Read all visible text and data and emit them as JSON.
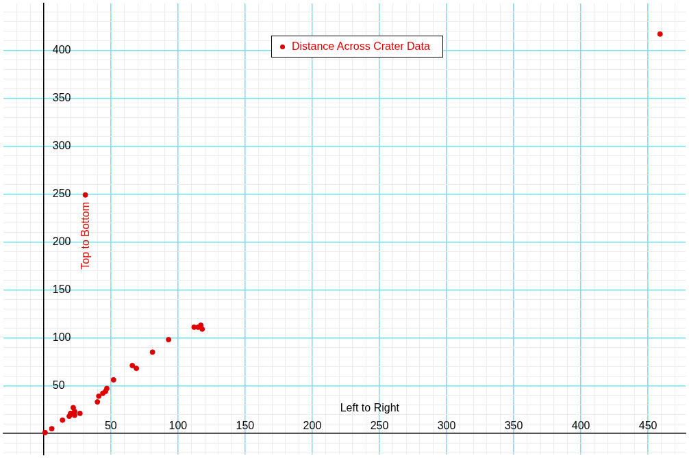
{
  "chart_data": {
    "type": "scatter",
    "xlabel": "Left to Right",
    "ylabel": "Top to Bottom",
    "series": [
      {
        "name": "Distance Across Crater Data",
        "color": "#dd0000",
        "x": [
          1,
          6,
          14,
          19,
          20,
          22,
          23,
          23,
          27,
          40,
          41,
          44,
          46,
          47,
          52,
          66,
          69,
          81,
          93,
          112,
          115,
          117,
          118,
          31,
          459
        ],
        "values": [
          1,
          5,
          14,
          18,
          21,
          27,
          23,
          19,
          21,
          33,
          39,
          42,
          44,
          47,
          56,
          71,
          68,
          85,
          98,
          111,
          111,
          113,
          109,
          249,
          417
        ]
      }
    ],
    "xlim": [
      -30,
      478
    ],
    "ylim": [
      -22,
      449
    ],
    "xticks": [
      {
        "value": -20,
        "label": null
      },
      {
        "value": -10,
        "label": null
      },
      {
        "value": 0,
        "label": null
      },
      {
        "value": 10,
        "label": null
      },
      {
        "value": 20,
        "label": null
      },
      {
        "value": 30,
        "label": null
      },
      {
        "value": 40,
        "label": null
      },
      50,
      {
        "value": 60,
        "label": null
      },
      {
        "value": 70,
        "label": null
      },
      {
        "value": 80,
        "label": null
      },
      {
        "value": 90,
        "label": null
      },
      100,
      {
        "value": 110,
        "label": null
      },
      {
        "value": 120,
        "label": null
      },
      {
        "value": 130,
        "label": null
      },
      {
        "value": 140,
        "label": null
      },
      150,
      {
        "value": 160,
        "label": null
      },
      {
        "value": 170,
        "label": null
      },
      {
        "value": 180,
        "label": null
      },
      {
        "value": 190,
        "label": null
      },
      200,
      {
        "value": 210,
        "label": null
      },
      {
        "value": 220,
        "label": null
      },
      {
        "value": 230,
        "label": null
      },
      {
        "value": 240,
        "label": null
      },
      250,
      {
        "value": 260,
        "label": null
      },
      {
        "value": 270,
        "label": null
      },
      {
        "value": 280,
        "label": null
      },
      {
        "value": 290,
        "label": null
      },
      300,
      {
        "value": 310,
        "label": null
      },
      {
        "value": 320,
        "label": null
      },
      {
        "value": 330,
        "label": null
      },
      {
        "value": 340,
        "label": null
      },
      350,
      {
        "value": 360,
        "label": null
      },
      {
        "value": 370,
        "label": null
      },
      {
        "value": 380,
        "label": null
      },
      {
        "value": 390,
        "label": null
      },
      400,
      {
        "value": 410,
        "label": null
      },
      {
        "value": 420,
        "label": null
      },
      {
        "value": 430,
        "label": null
      },
      {
        "value": 440,
        "label": null
      },
      450,
      {
        "value": 460,
        "label": null
      },
      {
        "value": 470,
        "label": null
      }
    ],
    "yticks": [
      {
        "value": -20,
        "label": null
      },
      {
        "value": -10,
        "label": null
      },
      {
        "value": 0,
        "label": null
      },
      {
        "value": 10,
        "label": null
      },
      {
        "value": 20,
        "label": null
      },
      {
        "value": 30,
        "label": null
      },
      {
        "value": 40,
        "label": null
      },
      50,
      {
        "value": 60,
        "label": null
      },
      {
        "value": 70,
        "label": null
      },
      {
        "value": 80,
        "label": null
      },
      {
        "value": 90,
        "label": null
      },
      100,
      {
        "value": 110,
        "label": null
      },
      {
        "value": 120,
        "label": null
      },
      {
        "value": 130,
        "label": null
      },
      {
        "value": 140,
        "label": null
      },
      150,
      {
        "value": 160,
        "label": null
      },
      {
        "value": 170,
        "label": null
      },
      {
        "value": 180,
        "label": null
      },
      {
        "value": 190,
        "label": null
      },
      200,
      {
        "value": 210,
        "label": null
      },
      {
        "value": 220,
        "label": null
      },
      {
        "value": 230,
        "label": null
      },
      {
        "value": 240,
        "label": null
      },
      250,
      {
        "value": 260,
        "label": null
      },
      {
        "value": 270,
        "label": null
      },
      {
        "value": 280,
        "label": null
      },
      {
        "value": 290,
        "label": null
      },
      300,
      {
        "value": 310,
        "label": null
      },
      {
        "value": 320,
        "label": null
      },
      {
        "value": 330,
        "label": null
      },
      {
        "value": 340,
        "label": null
      },
      350,
      {
        "value": 360,
        "label": null
      },
      {
        "value": 370,
        "label": null
      },
      {
        "value": 380,
        "label": null
      },
      {
        "value": 390,
        "label": null
      },
      400,
      {
        "value": 410,
        "label": null
      },
      {
        "value": 420,
        "label": null
      },
      {
        "value": 430,
        "label": null
      },
      {
        "value": 440,
        "label": null
      }
    ],
    "grid": true,
    "legend": "top",
    "marker": "circle"
  }
}
